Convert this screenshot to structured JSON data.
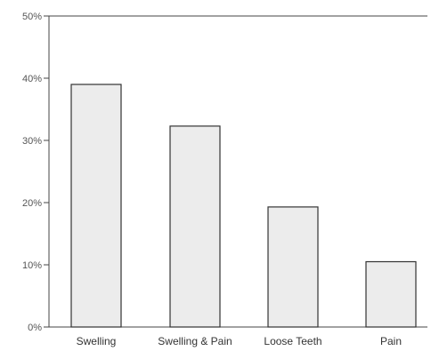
{
  "chart_data": {
    "type": "bar",
    "categories": [
      "Swelling",
      "Swelling & Pain",
      "Loose Teeth",
      "Pain"
    ],
    "values": [
      39,
      32.3,
      19.3,
      10.5
    ],
    "y_ticks": [
      "0%",
      "10%",
      "20%",
      "30%",
      "40%",
      "50%"
    ],
    "ylim": [
      0,
      50
    ],
    "unit": "%",
    "grid": false,
    "colors": {
      "bar_fill": "#ececec",
      "bar_stroke": "#333333",
      "axis": "#444444"
    }
  }
}
